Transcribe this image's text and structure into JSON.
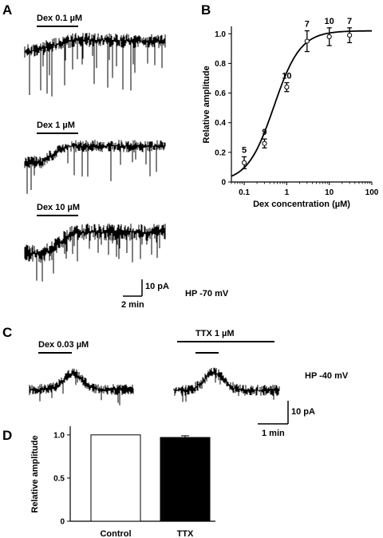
{
  "panels": {
    "a": "A",
    "b": "B",
    "c": "C",
    "d": "D"
  },
  "panel_a": {
    "traces": [
      {
        "label": "Dex 0.1 µM"
      },
      {
        "label": "Dex 1 µM"
      },
      {
        "label": "Dex 10 µM"
      }
    ],
    "scale_y": "10 pA",
    "scale_x": "2 min",
    "hp": "HP -70 mV"
  },
  "panel_c": {
    "control_label": "Dex 0.03 µM",
    "ttx_label": "TTX 1 µM",
    "hp": "HP -40 mV",
    "scale_y": "10 pA",
    "scale_x": "1 min"
  },
  "chart_data": [
    {
      "type": "scatter",
      "panel": "B",
      "xlabel": "Dex concentration (µM)",
      "ylabel": "Relative amplitude",
      "xscale": "log",
      "xlim": [
        0.05,
        100
      ],
      "ylim": [
        0,
        1.05
      ],
      "xticks": [
        "0.1",
        "1",
        "10",
        "100"
      ],
      "yticks": [
        "0",
        "0.2",
        "0.4",
        "0.6",
        "0.8",
        "1.0"
      ],
      "points": [
        {
          "x": 0.1,
          "y": 0.13,
          "err": 0.04,
          "n": "5"
        },
        {
          "x": 0.3,
          "y": 0.26,
          "err": 0.03,
          "n": "9"
        },
        {
          "x": 1,
          "y": 0.64,
          "err": 0.03,
          "n": "10"
        },
        {
          "x": 3,
          "y": 0.95,
          "err": 0.07,
          "n": "7"
        },
        {
          "x": 10,
          "y": 0.98,
          "err": 0.06,
          "n": "10"
        },
        {
          "x": 30,
          "y": 0.99,
          "err": 0.05,
          "n": "7"
        }
      ],
      "fit": {
        "bottom": 0,
        "top": 1.02,
        "ec50": 0.5,
        "hill": 1.4
      }
    },
    {
      "type": "bar",
      "panel": "D",
      "ylabel": "Relative amplitude",
      "categories": [
        "Control",
        "TTX"
      ],
      "values": [
        1.0,
        0.97
      ],
      "errors": [
        0,
        0.02
      ],
      "colors": [
        "#ffffff",
        "#000000"
      ],
      "ylim": [
        0,
        1.1
      ],
      "yticks": [
        "0",
        "0.5",
        "1.0"
      ]
    }
  ]
}
